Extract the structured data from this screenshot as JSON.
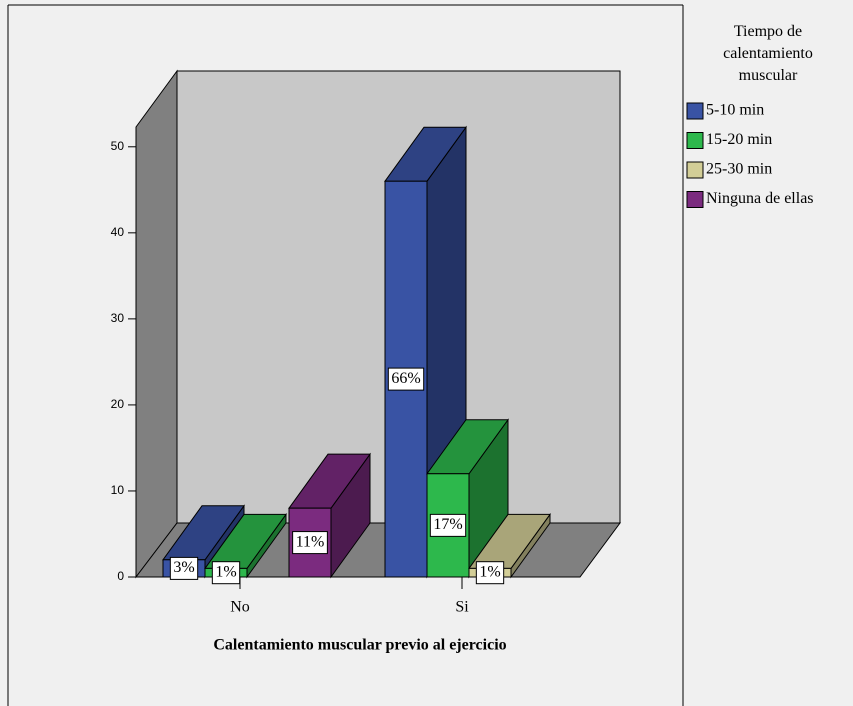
{
  "chart_data": {
    "type": "bar3d",
    "x_label": "Calentamiento muscular previo al ejercicio",
    "legend_title": "Tiempo de calentamiento muscular",
    "legend": "right",
    "categories": [
      "No",
      "Si"
    ],
    "ylim": [
      0,
      52.3
    ],
    "yticks": [
      0,
      10,
      20,
      30,
      40,
      50
    ],
    "series": [
      {
        "name": "5-10 min",
        "color": "#3953a4",
        "values": [
          2,
          46
        ],
        "labels": [
          "3%",
          "66%"
        ]
      },
      {
        "name": "15-20 min",
        "color": "#2db84c",
        "values": [
          1,
          12
        ],
        "labels": [
          "1%",
          "17%"
        ]
      },
      {
        "name": "25-30 min",
        "color": "#d3ce97",
        "values": [
          null,
          1
        ],
        "labels": [
          null,
          "1%"
        ]
      },
      {
        "name": "Ninguna de ellas",
        "color": "#7b2b7f",
        "values": [
          8,
          null
        ],
        "labels": [
          "11%",
          null
        ]
      }
    ]
  }
}
